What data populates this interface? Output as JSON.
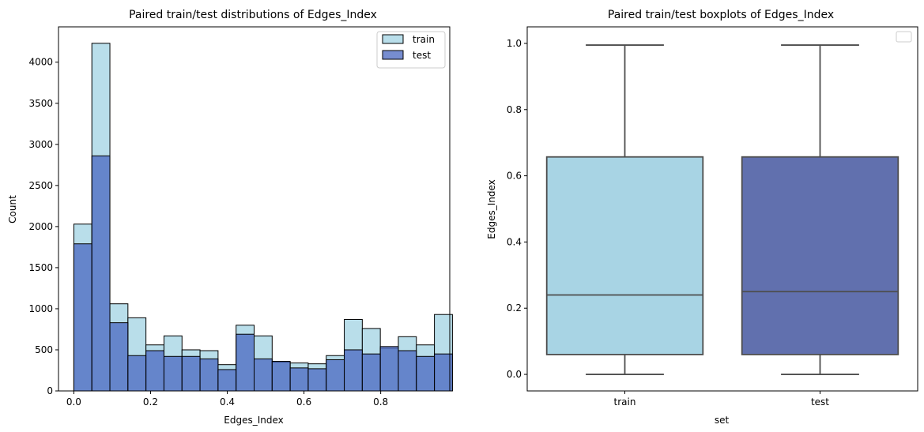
{
  "chart_data": [
    {
      "type": "bar",
      "subtype": "histogram",
      "title": "Paired train/test distributions of Edges_Index",
      "xlabel": "Edges_Index",
      "ylabel": "Count",
      "xlim": [
        -0.04,
        0.98
      ],
      "ylim": [
        0,
        4430
      ],
      "x_ticks": [
        "0.0",
        "0.2",
        "0.4",
        "0.6",
        "0.8"
      ],
      "x_tick_values": [
        0,
        0.2,
        0.4,
        0.6,
        0.8
      ],
      "y_ticks": [
        "0",
        "500",
        "1000",
        "1500",
        "2000",
        "2500",
        "3000",
        "3500",
        "4000"
      ],
      "y_tick_values": [
        0,
        500,
        1000,
        1500,
        2000,
        2500,
        3000,
        3500,
        4000
      ],
      "legend_position": "top-right",
      "series": [
        {
          "name": "train",
          "color": "#add8e6",
          "bins": [
            [
              0.0,
              0.047,
              2030
            ],
            [
              0.047,
              0.094,
              4230
            ],
            [
              0.094,
              0.141,
              1060
            ],
            [
              0.141,
              0.188,
              890
            ],
            [
              0.188,
              0.235,
              560
            ],
            [
              0.235,
              0.282,
              670
            ],
            [
              0.282,
              0.329,
              500
            ],
            [
              0.329,
              0.376,
              490
            ],
            [
              0.376,
              0.423,
              320
            ],
            [
              0.423,
              0.47,
              800
            ],
            [
              0.47,
              0.517,
              670
            ],
            [
              0.517,
              0.564,
              350
            ],
            [
              0.564,
              0.611,
              340
            ],
            [
              0.611,
              0.658,
              330
            ],
            [
              0.658,
              0.705,
              430
            ],
            [
              0.705,
              0.752,
              870
            ],
            [
              0.752,
              0.799,
              760
            ],
            [
              0.799,
              0.846,
              520
            ],
            [
              0.846,
              0.893,
              660
            ],
            [
              0.893,
              0.94,
              560
            ],
            [
              0.94,
              0.987,
              930
            ]
          ]
        },
        {
          "name": "test",
          "color": "#4a67c0",
          "bins": [
            [
              0.0,
              0.047,
              1790
            ],
            [
              0.047,
              0.094,
              2860
            ],
            [
              0.094,
              0.141,
              830
            ],
            [
              0.141,
              0.188,
              430
            ],
            [
              0.188,
              0.235,
              490
            ],
            [
              0.235,
              0.282,
              420
            ],
            [
              0.282,
              0.329,
              420
            ],
            [
              0.329,
              0.376,
              390
            ],
            [
              0.376,
              0.423,
              260
            ],
            [
              0.423,
              0.47,
              690
            ],
            [
              0.47,
              0.517,
              390
            ],
            [
              0.517,
              0.564,
              360
            ],
            [
              0.564,
              0.611,
              280
            ],
            [
              0.611,
              0.658,
              270
            ],
            [
              0.658,
              0.705,
              380
            ],
            [
              0.705,
              0.752,
              500
            ],
            [
              0.752,
              0.799,
              450
            ],
            [
              0.799,
              0.846,
              540
            ],
            [
              0.846,
              0.893,
              490
            ],
            [
              0.893,
              0.94,
              420
            ],
            [
              0.94,
              0.987,
              450
            ]
          ]
        }
      ]
    },
    {
      "type": "box",
      "title": "Paired train/test boxplots of Edges_Index",
      "xlabel": "set",
      "ylabel": "Edges_Index",
      "categories": [
        "train",
        "test"
      ],
      "ylim": [
        -0.05,
        1.05
      ],
      "y_ticks": [
        "0.0",
        "0.2",
        "0.4",
        "0.6",
        "0.8",
        "1.0"
      ],
      "y_tick_values": [
        0,
        0.2,
        0.4,
        0.6,
        0.8,
        1.0
      ],
      "legend_position": "top-right",
      "series": [
        {
          "category": "train",
          "color": "#a8d4e4",
          "min": 0.0,
          "q1": 0.06,
          "median": 0.24,
          "q3": 0.657,
          "max": 0.995
        },
        {
          "category": "test",
          "color": "#6170ae",
          "min": 0.0,
          "q1": 0.06,
          "median": 0.25,
          "q3": 0.657,
          "max": 0.995
        }
      ]
    }
  ]
}
